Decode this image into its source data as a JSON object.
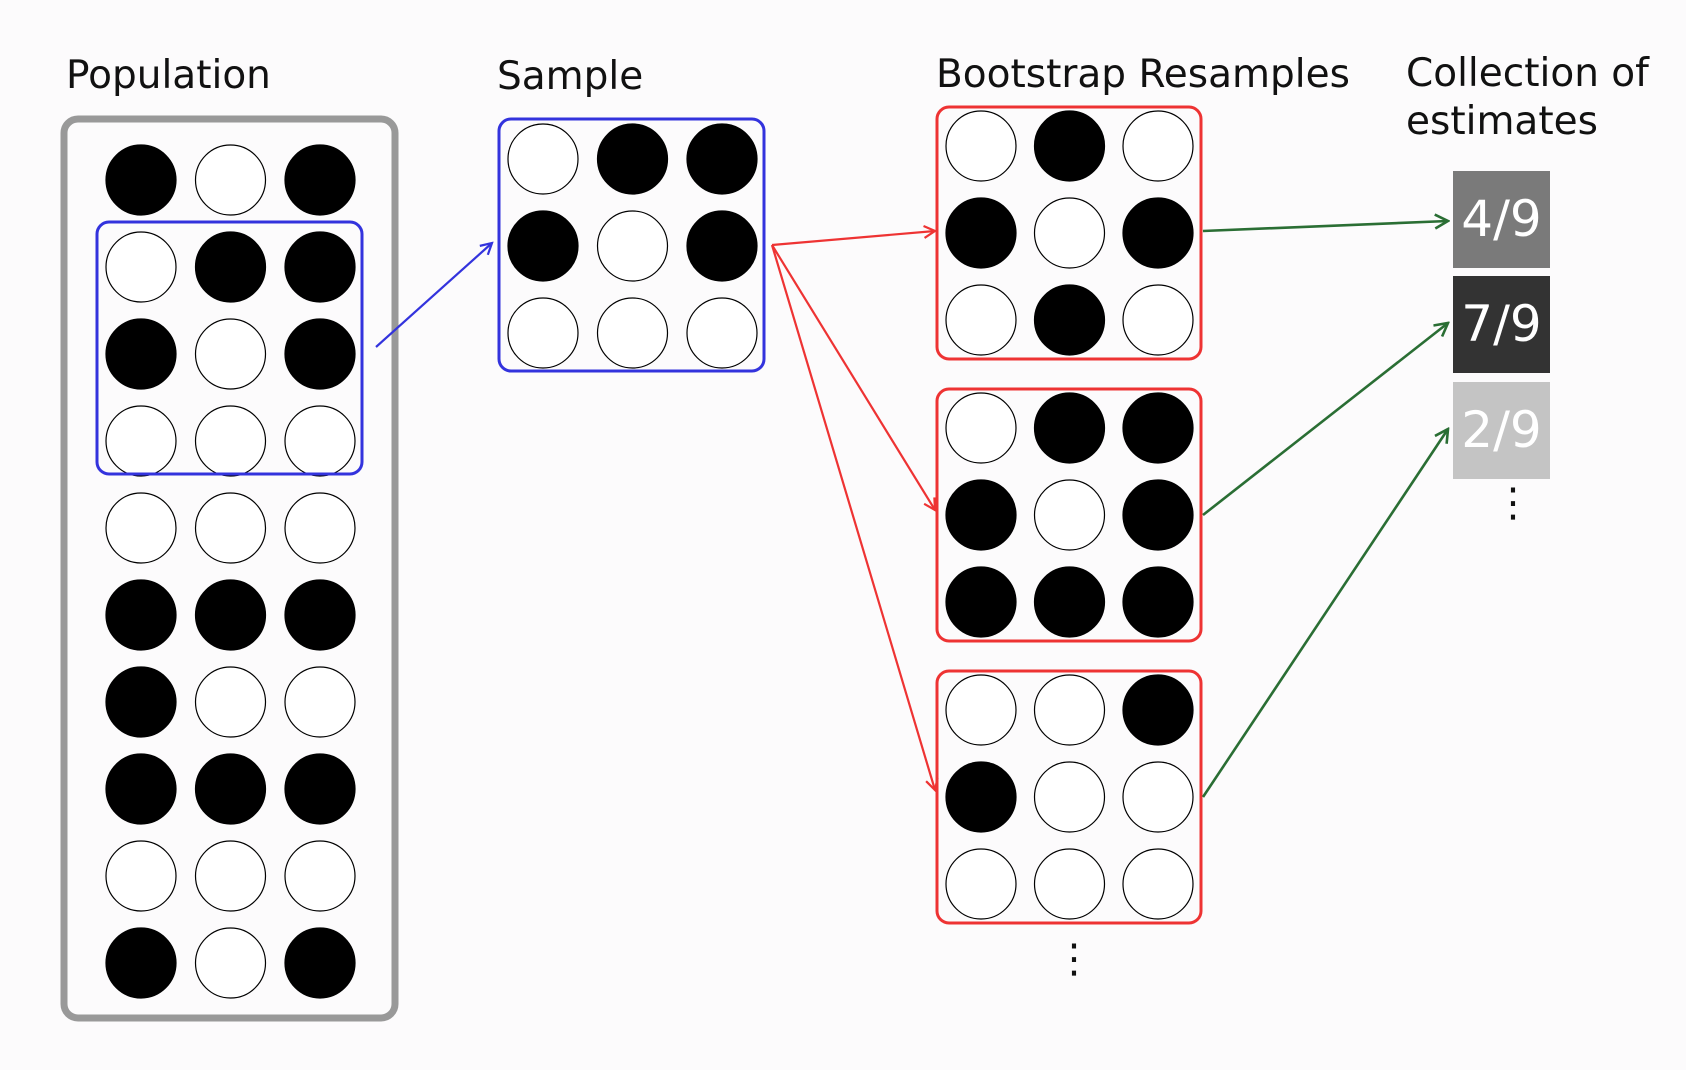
{
  "labels": {
    "population": "Population",
    "sample": "Sample",
    "bootstrap": "Bootstrap Resamples",
    "collection_line1": "Collection of",
    "collection_line2": "estimates"
  },
  "colors": {
    "population_frame": "#999999",
    "sample_frame": "#3333dd",
    "resample_frame": "#ee3333",
    "estimate_arrow": "#2a6e34",
    "filled_ball": "#000000",
    "empty_ball": "#ffffff"
  },
  "population": [
    [
      1,
      0,
      1
    ],
    [
      0,
      1,
      1
    ],
    [
      1,
      0,
      1
    ],
    [
      0,
      0,
      0
    ],
    [
      0,
      0,
      0
    ],
    [
      1,
      1,
      1
    ],
    [
      1,
      0,
      0
    ],
    [
      1,
      1,
      1
    ],
    [
      0,
      0,
      0
    ],
    [
      1,
      0,
      1
    ]
  ],
  "sample": [
    [
      0,
      1,
      1
    ],
    [
      1,
      0,
      1
    ],
    [
      0,
      0,
      0
    ]
  ],
  "resamples": [
    [
      [
        0,
        1,
        0
      ],
      [
        1,
        0,
        1
      ],
      [
        0,
        1,
        0
      ]
    ],
    [
      [
        0,
        1,
        1
      ],
      [
        1,
        0,
        1
      ],
      [
        1,
        1,
        1
      ]
    ],
    [
      [
        0,
        0,
        1
      ],
      [
        1,
        0,
        0
      ],
      [
        0,
        0,
        0
      ]
    ]
  ],
  "estimates": [
    {
      "text": "4/9",
      "color": "#7a7a7a"
    },
    {
      "text": "7/9",
      "color": "#333333"
    },
    {
      "text": "2/9",
      "color": "#c4c4c4"
    }
  ],
  "ellipsis": "⋮"
}
